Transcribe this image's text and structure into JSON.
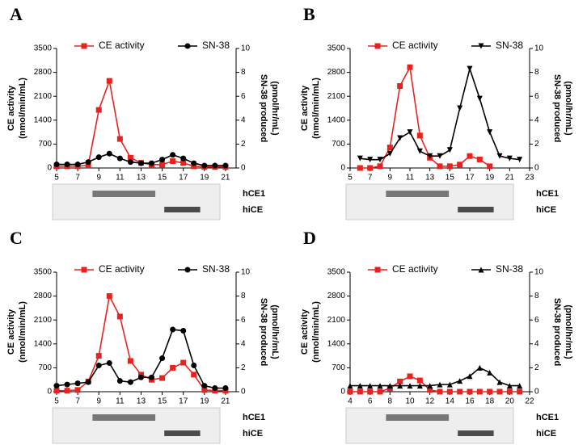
{
  "chart_data": [
    {
      "type": "line",
      "panel_label": "A",
      "ylabel": [
        "CE activity",
        "(nmol/min/mL)"
      ],
      "y2label": [
        "SN-38 produced",
        "(pmol/hr/mL)"
      ],
      "xlim": [
        5,
        22
      ],
      "xticks": [
        5,
        7,
        9,
        11,
        13,
        15,
        17,
        19,
        21
      ],
      "ylim": [
        0,
        3500
      ],
      "yticks": [
        0,
        700,
        1400,
        2100,
        2800,
        3500
      ],
      "y2lim": [
        0,
        10
      ],
      "y2ticks": [
        0,
        2,
        4,
        6,
        8,
        10
      ],
      "x": [
        5,
        6,
        7,
        8,
        9,
        10,
        11,
        12,
        13,
        14,
        15,
        16,
        17,
        18,
        19,
        20,
        21
      ],
      "series": [
        {
          "name": "CE activity",
          "color": "#e8231f",
          "marker": "square",
          "values": [
            50,
            50,
            50,
            80,
            1700,
            2550,
            850,
            300,
            150,
            100,
            100,
            200,
            150,
            50,
            30,
            30,
            30
          ]
        },
        {
          "name": "SN-38",
          "color": "#000000",
          "marker": "circle",
          "axis": "y2",
          "values": [
            0.3,
            0.3,
            0.3,
            0.5,
            0.9,
            1.2,
            0.8,
            0.5,
            0.4,
            0.4,
            0.7,
            1.1,
            0.8,
            0.4,
            0.2,
            0.2,
            0.2
          ]
        }
      ],
      "blot_labels": [
        "hCE1",
        "hiCE"
      ]
    },
    {
      "type": "line",
      "panel_label": "B",
      "ylabel": [
        "CE activity",
        "(nmol/min/mL)"
      ],
      "y2label": [
        "SN-38 produced",
        "(pmol/hr/mL)"
      ],
      "xlim": [
        5,
        23
      ],
      "xticks": [
        5,
        7,
        9,
        11,
        13,
        15,
        17,
        19,
        21,
        23
      ],
      "ylim": [
        0,
        3500
      ],
      "yticks": [
        0,
        700,
        1400,
        2100,
        2800,
        3500
      ],
      "y2lim": [
        0,
        10
      ],
      "y2ticks": [
        0,
        2,
        4,
        6,
        8,
        10
      ],
      "x": [
        6,
        7,
        8,
        9,
        10,
        11,
        12,
        13,
        14,
        15,
        16,
        17,
        18,
        19,
        20,
        21,
        22
      ],
      "series": [
        {
          "name": "CE activity",
          "color": "#e8231f",
          "marker": "square",
          "values": [
            0,
            0,
            50,
            600,
            2400,
            2950,
            950,
            300,
            50,
            50,
            100,
            350,
            250,
            50,
            null,
            null,
            null
          ]
        },
        {
          "name": "SN-38",
          "color": "#000000",
          "marker": "triangle-down",
          "axis": "y2",
          "values": [
            0.8,
            0.7,
            0.7,
            1.2,
            2.5,
            3,
            1.4,
            1,
            1,
            1.5,
            5,
            8.3,
            5.8,
            3,
            1,
            0.8,
            0.7
          ]
        }
      ],
      "blot_labels": [
        "hCE1",
        "hiCE"
      ]
    },
    {
      "type": "line",
      "panel_label": "C",
      "ylabel": [
        "CE activity",
        "(nmol/min/mL)"
      ],
      "y2label": [
        "SN-38 produced",
        "(pmol/hr/mL)"
      ],
      "xlim": [
        5,
        22
      ],
      "xticks": [
        5,
        7,
        9,
        11,
        13,
        15,
        17,
        19,
        21
      ],
      "ylim": [
        0,
        3500
      ],
      "yticks": [
        0,
        700,
        1400,
        2100,
        2800,
        3500
      ],
      "y2lim": [
        0,
        10
      ],
      "y2ticks": [
        0,
        2,
        4,
        6,
        8,
        10
      ],
      "x": [
        5,
        6,
        7,
        8,
        9,
        10,
        11,
        12,
        13,
        14,
        15,
        16,
        17,
        18,
        19,
        20,
        21
      ],
      "series": [
        {
          "name": "CE activity",
          "color": "#e8231f",
          "marker": "square",
          "values": [
            30,
            30,
            50,
            300,
            1050,
            2800,
            2200,
            900,
            500,
            350,
            400,
            700,
            850,
            500,
            50,
            30,
            30
          ]
        },
        {
          "name": "SN-38",
          "color": "#000000",
          "marker": "circle",
          "axis": "y2",
          "values": [
            0.5,
            0.6,
            0.7,
            0.8,
            2.2,
            2.4,
            0.9,
            0.8,
            1.2,
            1.2,
            2.8,
            5.2,
            5.1,
            2.2,
            0.5,
            0.3,
            0.3
          ]
        }
      ],
      "blot_labels": [
        "hCE1",
        "hiCE"
      ]
    },
    {
      "type": "line",
      "panel_label": "D",
      "ylabel": [
        "CE activity",
        "(nmol/min/mL)"
      ],
      "y2label": [
        "SN-38 produced",
        "(pmol/hr/mL)"
      ],
      "xlim": [
        4,
        22
      ],
      "xticks": [
        4,
        6,
        8,
        10,
        12,
        14,
        16,
        18,
        20,
        22
      ],
      "ylim": [
        0,
        3500
      ],
      "yticks": [
        0,
        700,
        1400,
        2100,
        2800,
        3500
      ],
      "y2lim": [
        0,
        10
      ],
      "y2ticks": [
        0,
        2,
        4,
        6,
        8,
        10
      ],
      "x": [
        4,
        5,
        6,
        7,
        8,
        9,
        10,
        11,
        12,
        13,
        14,
        15,
        16,
        17,
        18,
        19,
        20,
        21
      ],
      "series": [
        {
          "name": "CE activity",
          "color": "#e8231f",
          "marker": "square",
          "values": [
            0,
            0,
            0,
            0,
            100,
            300,
            450,
            330,
            50,
            0,
            0,
            0,
            0,
            0,
            0,
            0,
            0,
            0
          ]
        },
        {
          "name": "SN-38",
          "color": "#000000",
          "marker": "triangle-up",
          "axis": "y2",
          "values": [
            0.5,
            0.5,
            0.5,
            0.5,
            0.5,
            0.5,
            0.5,
            0.5,
            0.5,
            0.6,
            0.6,
            0.9,
            1.3,
            2,
            1.6,
            0.8,
            0.5,
            0.5
          ]
        }
      ],
      "blot_labels": [
        "hCE1",
        "hiCE"
      ]
    }
  ]
}
